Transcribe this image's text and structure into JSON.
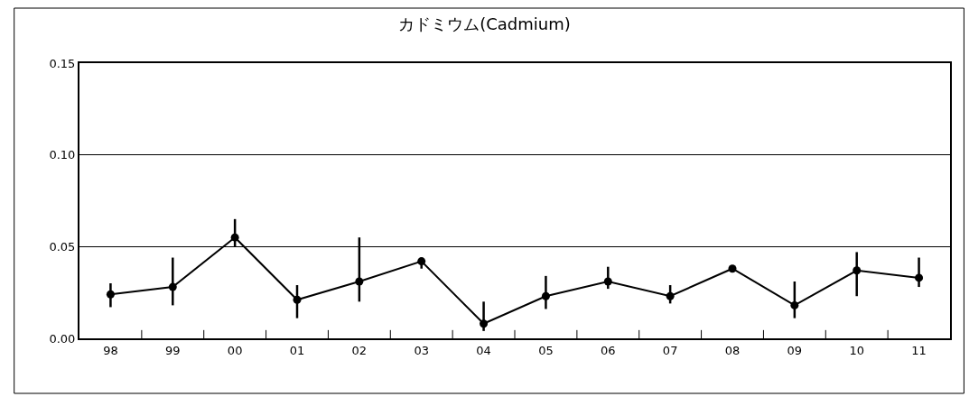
{
  "chart_data": {
    "type": "line",
    "title": "カドミウム(Cadmium)",
    "categories": [
      "98",
      "99",
      "00",
      "01",
      "02",
      "03",
      "04",
      "05",
      "06",
      "07",
      "08",
      "09",
      "10",
      "11"
    ],
    "series": [
      {
        "color": "#000000",
        "values": [
          0.024,
          0.028,
          0.055,
          0.021,
          0.031,
          0.042,
          0.008,
          0.023,
          0.031,
          0.023,
          0.038,
          0.018,
          0.037,
          0.033
        ],
        "errors": [
          [
            0.017,
            0.03
          ],
          [
            0.018,
            0.044
          ],
          [
            0.05,
            0.065
          ],
          [
            0.011,
            0.029
          ],
          [
            0.02,
            0.055
          ],
          [
            0.038,
            0.044
          ],
          [
            0.004,
            0.02
          ],
          [
            0.016,
            0.034
          ],
          [
            0.027,
            0.039
          ],
          [
            0.019,
            0.029
          ],
          null,
          [
            0.011,
            0.031
          ],
          [
            0.023,
            0.047
          ],
          [
            0.028,
            0.044
          ]
        ]
      }
    ],
    "ylim": [
      0,
      0.15
    ],
    "yticks": [
      {
        "value": 0,
        "label": "0.00"
      },
      {
        "value": 0.05,
        "label": "0.05"
      },
      {
        "value": 0.1,
        "label": "0.10"
      },
      {
        "value": 0.15,
        "label": "0.15"
      }
    ],
    "grid": "y",
    "marker": "circle",
    "line_style": "solid",
    "legend": false
  }
}
